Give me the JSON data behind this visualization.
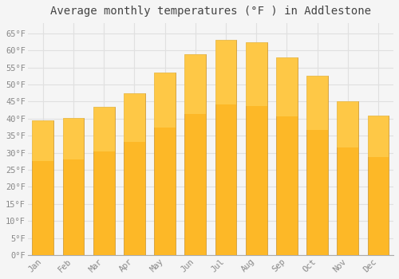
{
  "title": "Average monthly temperatures (°F ) in Addlestone",
  "months": [
    "Jan",
    "Feb",
    "Mar",
    "Apr",
    "May",
    "Jun",
    "Jul",
    "Aug",
    "Sep",
    "Oct",
    "Nov",
    "Dec"
  ],
  "values": [
    39.5,
    40.1,
    43.5,
    47.5,
    53.5,
    59.0,
    63.0,
    62.5,
    58.0,
    52.5,
    45.0,
    41.0
  ],
  "bar_color_face": "#FDB827",
  "bar_color_edge": "#C8922A",
  "background_color": "#F5F5F5",
  "grid_color": "#E0E0E0",
  "ytick_labels": [
    "0°F",
    "5°F",
    "10°F",
    "15°F",
    "20°F",
    "25°F",
    "30°F",
    "35°F",
    "40°F",
    "45°F",
    "50°F",
    "55°F",
    "60°F",
    "65°F"
  ],
  "ytick_values": [
    0,
    5,
    10,
    15,
    20,
    25,
    30,
    35,
    40,
    45,
    50,
    55,
    60,
    65
  ],
  "ylim": [
    0,
    68
  ],
  "title_fontsize": 10,
  "tick_fontsize": 7.5,
  "tick_color": "#888888",
  "label_font": "monospace",
  "bar_width": 0.7
}
